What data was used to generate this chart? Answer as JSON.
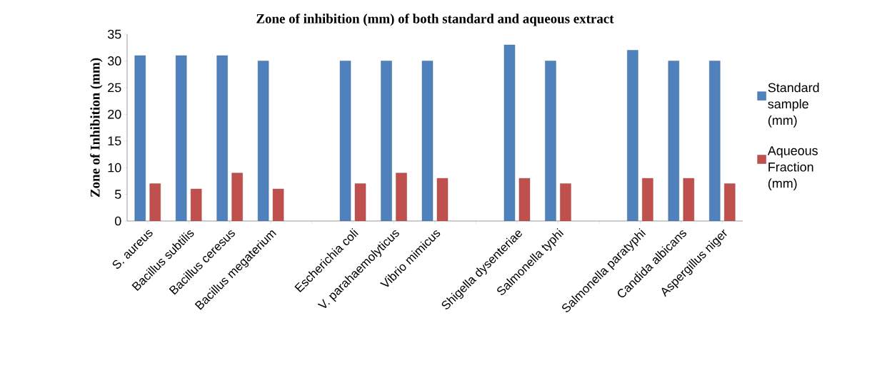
{
  "chart_data": {
    "type": "bar",
    "title": "Zone of inhibition (mm) of both standard and aqueous extract",
    "ylabel": "Zone of Inhibition (mm)",
    "categories": [
      "S. aureus",
      "Bacillus subtilis",
      "Bacillus ceresus",
      "Bacillus megaterium",
      null,
      "Escherichia coli",
      "V. parahaemolyticus",
      "Vibrio mimicus",
      null,
      "Shigella dysenteriae",
      "Salmonella typhi",
      null,
      "Salmonella paratyphi",
      "Candida albicans",
      "Aspergillus niger"
    ],
    "series": [
      {
        "name": "Standard sample (mm)",
        "color": "#4f81bd",
        "values": [
          31,
          31,
          31,
          30,
          null,
          30,
          30,
          30,
          null,
          33,
          30,
          null,
          32,
          30,
          30
        ]
      },
      {
        "name": "Aqueous Fraction (mm)",
        "color": "#c0504d",
        "values": [
          7,
          6,
          9,
          6,
          null,
          7,
          9,
          8,
          null,
          8,
          7,
          null,
          8,
          8,
          7
        ]
      }
    ],
    "ylim": [
      0,
      35
    ],
    "yticks": [
      0,
      5,
      10,
      15,
      20,
      25,
      30,
      35
    ],
    "grid": false,
    "legend": "right"
  }
}
